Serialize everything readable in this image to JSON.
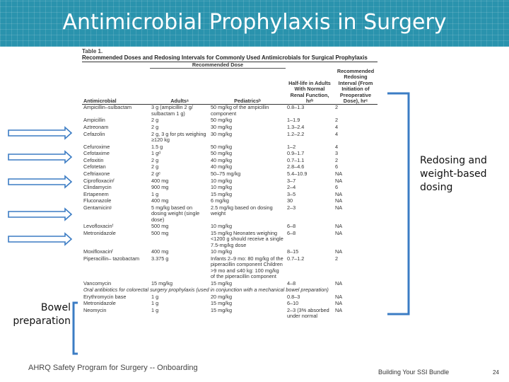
{
  "header": {
    "title": "Antimicrobial Prophylaxis in Surgery"
  },
  "table": {
    "caption": "Table 1.",
    "title": "Recommended Doses and Redosing Intervals for Commonly Used Antimicrobials for Surgical Prophylaxis",
    "group_header": "Recommended Dose",
    "headers": [
      "Antimicrobial",
      "Adultsᵃ",
      "Pediatricsᵇ",
      "Half-life in Adults With Normal Renal Function, hrᵇ",
      "Recommended Redosing Interval (From Initiation of Preoperative Dose), hrᶜ"
    ],
    "rows": [
      [
        "Ampicillin–sulbactam",
        "3 g (ampicillin 2 g/ sulbactam 1 g)",
        "50 mg/kg of the ampicillin component",
        "0.8–1.3",
        "2"
      ],
      [
        "Ampicillin",
        "2 g",
        "50 mg/kg",
        "1–1.9",
        "2"
      ],
      [
        "Aztreonam",
        "2 g",
        "30 mg/kg",
        "1.3–2.4",
        "4"
      ],
      [
        "Cefazolin",
        "2 g, 3 g for pts weighing ≥120 kg",
        "30 mg/kg",
        "1.2–2.2",
        "4"
      ],
      [
        "Cefuroxime",
        "1.5 g",
        "50 mg/kg",
        "1–2",
        "4"
      ],
      [
        "Cefotaxime",
        "1 gᵈ",
        "50 mg/kg",
        "0.9–1.7",
        "3"
      ],
      [
        "Cefoxitin",
        "2 g",
        "40 mg/kg",
        "0.7–1.1",
        "2"
      ],
      [
        "Cefotetan",
        "2 g",
        "40 mg/kg",
        "2.8–4.6",
        "6"
      ],
      [
        "Ceftriaxone",
        "2 gᵉ",
        "50–75 mg/kg",
        "5.4–10.9",
        "NA"
      ],
      [
        "Ciprofloxacinᶠ",
        "400 mg",
        "10 mg/kg",
        "3–7",
        "NA"
      ],
      [
        "Clindamycin",
        "900 mg",
        "10 mg/kg",
        "2–4",
        "6"
      ],
      [
        "Ertapenem",
        "1 g",
        "15 mg/kg",
        "3–5",
        "NA"
      ],
      [
        "Fluconazole",
        "400 mg",
        "6 mg/kg",
        "30",
        "NA"
      ],
      [
        "Gentamicinᵍ",
        "5 mg/kg based on dosing weight (single dose)",
        "2.5 mg/kg based on dosing weight",
        "2–3",
        "NA"
      ],
      [
        "Levofloxacinᶠ",
        "500 mg",
        "10 mg/kg",
        "6–8",
        "NA"
      ],
      [
        "Metronidazole",
        "500 mg",
        "15 mg/kg Neonates weighing <1200 g should receive a single 7.5-mg/kg dose",
        "6–8",
        "NA"
      ],
      [
        "Moxifloxacinᶠ",
        "400 mg",
        "10 mg/kg",
        "8–15",
        "NA"
      ],
      [
        "Piperacillin– tazobactam",
        "3.375 g",
        "Infants 2–9 mo: 80 mg/kg of the piperacillin component Children >9 mo and ≤40 kg: 100 mg/kg of the piperacillin component",
        "0.7–1.2",
        "2"
      ],
      [
        "Vancomycin",
        "15 mg/kg",
        "15 mg/kg",
        "4–8",
        "NA"
      ]
    ],
    "section_note": "Oral antibiotics for colorectal surgery prophylaxis (used in conjunction with a mechanical bowel preparation)",
    "oral_rows": [
      [
        "Erythromycin base",
        "1 g",
        "20 mg/kg",
        "0.8–3",
        "NA"
      ],
      [
        "Metronidazole",
        "1 g",
        "15 mg/kg",
        "6–10",
        "NA"
      ],
      [
        "Neomycin",
        "1 g",
        "15 mg/kg",
        "2–3 (3% absorbed under normal",
        "NA"
      ]
    ]
  },
  "labels": {
    "redosing": "Redosing and weight-based dosing",
    "bowel": "Bowel preparation"
  },
  "footer": {
    "program": "AHRQ Safety Program for Surgery -- Onboarding",
    "module": "Building Your SSI Bundle",
    "page": "24"
  }
}
